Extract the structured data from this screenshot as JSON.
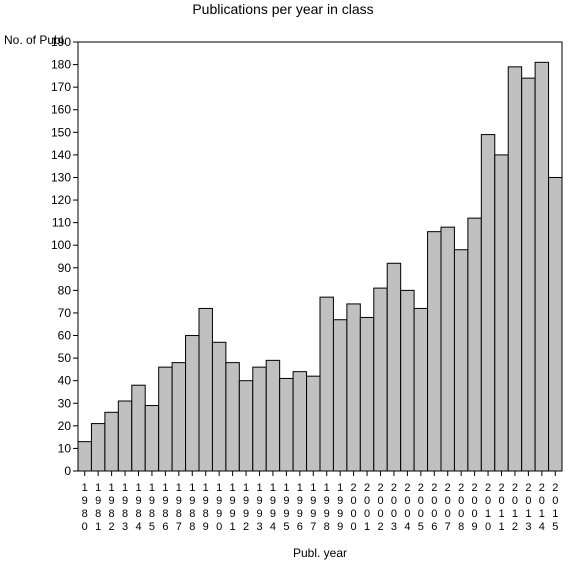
{
  "chart_data": {
    "type": "bar",
    "title": "Publications per year in class",
    "ylabel": "No. of Publ.",
    "xlabel": "Publ. year",
    "ylim": [
      0,
      190
    ],
    "y_ticks": [
      0,
      10,
      20,
      30,
      40,
      50,
      60,
      70,
      80,
      90,
      100,
      110,
      120,
      130,
      140,
      150,
      160,
      170,
      180,
      190
    ],
    "categories": [
      "1980",
      "1981",
      "1982",
      "1983",
      "1984",
      "1985",
      "1986",
      "1987",
      "1988",
      "1989",
      "1990",
      "1991",
      "1992",
      "1993",
      "1994",
      "1995",
      "1996",
      "1997",
      "1998",
      "1999",
      "2000",
      "2001",
      "2002",
      "2003",
      "2004",
      "2005",
      "2006",
      "2007",
      "2008",
      "2009",
      "2010",
      "2011",
      "2012",
      "2013",
      "2014",
      "2015"
    ],
    "values": [
      13,
      21,
      26,
      31,
      38,
      29,
      46,
      48,
      60,
      72,
      57,
      48,
      40,
      46,
      49,
      41,
      44,
      42,
      77,
      67,
      74,
      68,
      81,
      92,
      80,
      72,
      106,
      108,
      98,
      112,
      149,
      140,
      179,
      174,
      181,
      130
    ],
    "legend": "none",
    "grid": false,
    "colors": {
      "bar_fill": "#c0c0c0",
      "bar_stroke": "#000000"
    }
  }
}
